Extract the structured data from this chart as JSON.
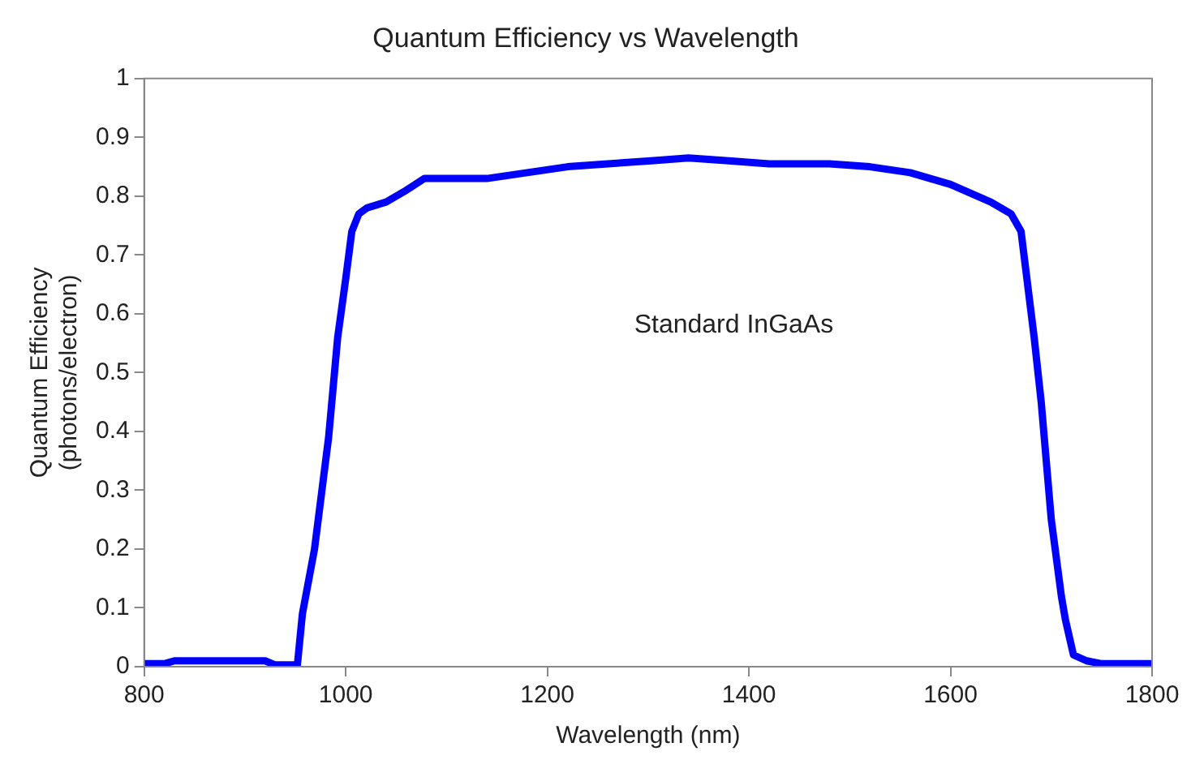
{
  "chart_data": {
    "type": "line",
    "title": "Quantum Efficiency vs Wavelength",
    "xlabel": "Wavelength (nm)",
    "ylabel": "Quantum Efficiency\n(photons/electron)",
    "xlim": [
      800,
      1800
    ],
    "xticks": [
      800,
      1000,
      1200,
      1400,
      1600,
      1800
    ],
    "ylim": [
      0,
      1
    ],
    "yticks": [
      0,
      0.1,
      0.2,
      0.3,
      0.4,
      0.5,
      0.6,
      0.7,
      0.8,
      0.9,
      1
    ],
    "grid": false,
    "legend": false,
    "marker": "none",
    "line_style": "solid",
    "series": [
      {
        "name": "Standard InGaAs",
        "color": "#0000ff",
        "x": [
          800,
          820,
          830,
          920,
          930,
          952,
          957,
          969,
          983,
          992,
          1000,
          1006,
          1013,
          1021,
          1040,
          1060,
          1078,
          1140,
          1180,
          1220,
          1260,
          1303,
          1340,
          1380,
          1420,
          1480,
          1520,
          1560,
          1600,
          1640,
          1660,
          1670,
          1683,
          1690,
          1700,
          1710,
          1714,
          1722,
          1735,
          1750,
          1800
        ],
        "values": [
          0.005,
          0.005,
          0.01,
          0.01,
          0.003,
          0.003,
          0.09,
          0.2,
          0.39,
          0.56,
          0.66,
          0.74,
          0.77,
          0.78,
          0.79,
          0.81,
          0.83,
          0.83,
          0.84,
          0.85,
          0.855,
          0.86,
          0.865,
          0.86,
          0.855,
          0.855,
          0.85,
          0.84,
          0.82,
          0.79,
          0.77,
          0.74,
          0.56,
          0.45,
          0.25,
          0.12,
          0.08,
          0.02,
          0.01,
          0.005,
          0.005
        ]
      }
    ]
  }
}
